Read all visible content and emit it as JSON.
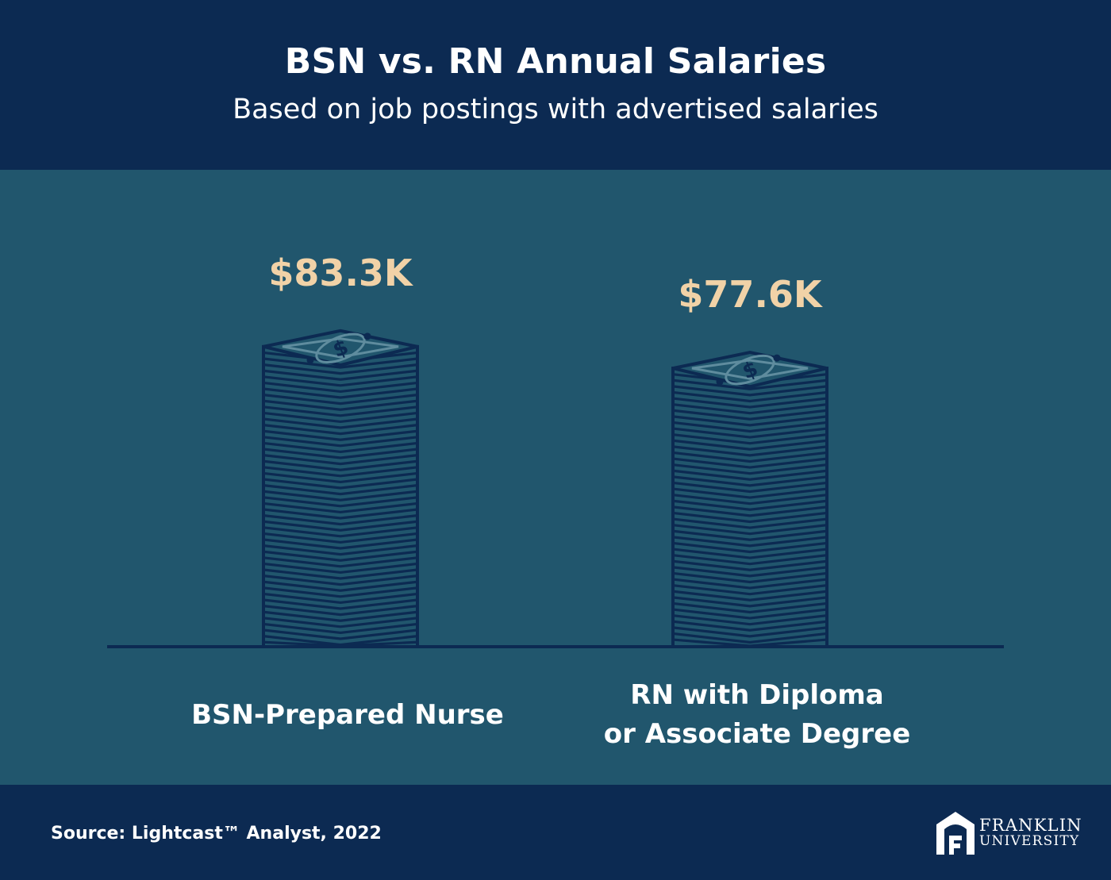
{
  "header": {
    "title": "BSN vs. RN Annual Salaries",
    "subtitle": "Based on job postings with advertised salaries"
  },
  "chart_data": {
    "type": "bar",
    "title": "BSN vs. RN Annual Salaries",
    "subtitle": "Based on job postings with advertised salaries",
    "categories": [
      "BSN-Prepared Nurse",
      "RN with Diploma or Associate Degree"
    ],
    "category_lines": [
      [
        "BSN-Prepared Nurse"
      ],
      [
        "RN with Diploma",
        "or Associate Degree"
      ]
    ],
    "values": [
      83.3,
      77.6
    ],
    "value_labels": [
      "$83.3K",
      "$77.6K"
    ],
    "units": "thousands USD",
    "bar_style": "stack-of-bills-icon",
    "grid": false,
    "legend": "none",
    "colors": {
      "background": "#21566d",
      "value_label": "#f1d2a7",
      "bill_outline": "#0c2a52",
      "bill_detail": "#5f8c9e",
      "baseline": "#0c2a52"
    }
  },
  "footer": {
    "source": "Source: Lightcast™ Analyst, 2022",
    "logo": {
      "icon": "franklin-arch-icon",
      "line1": "FRANKLIN",
      "line2": "UNIVERSITY"
    }
  }
}
